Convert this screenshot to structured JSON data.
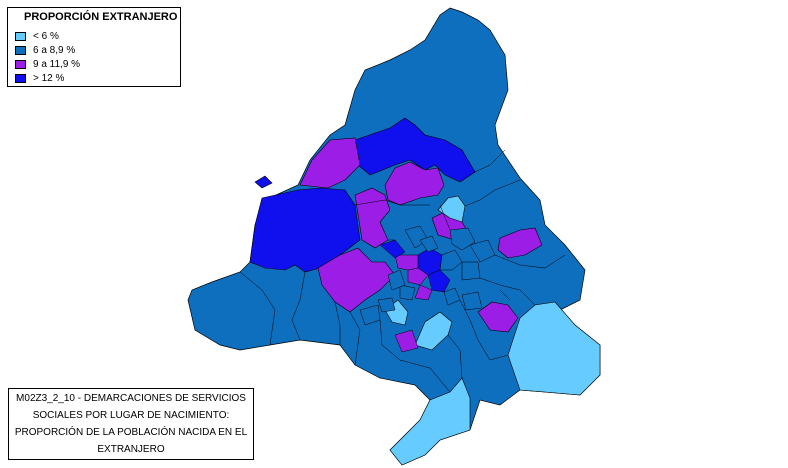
{
  "legend": {
    "title": "PROPORCIÓN EXTRANJERO",
    "items": [
      {
        "label": "< 6 %",
        "color": "#66ccff"
      },
      {
        "label": "6 a 8,9 %",
        "color": "#0f6fbf"
      },
      {
        "label": "9 a 11,9 %",
        "color": "#9b1de6"
      },
      {
        "label": "> 12 %",
        "color": "#1010ee"
      }
    ]
  },
  "caption": {
    "lines": [
      "M02Z3_2_10 - DEMARCACIONES DE SERVICIOS",
      "SOCIALES POR LUGAR DE NACIMIENTO:",
      "PROPORCIÓN DE LA POBLACIÓN NACIDA EN EL",
      "EXTRANJERO"
    ]
  }
}
